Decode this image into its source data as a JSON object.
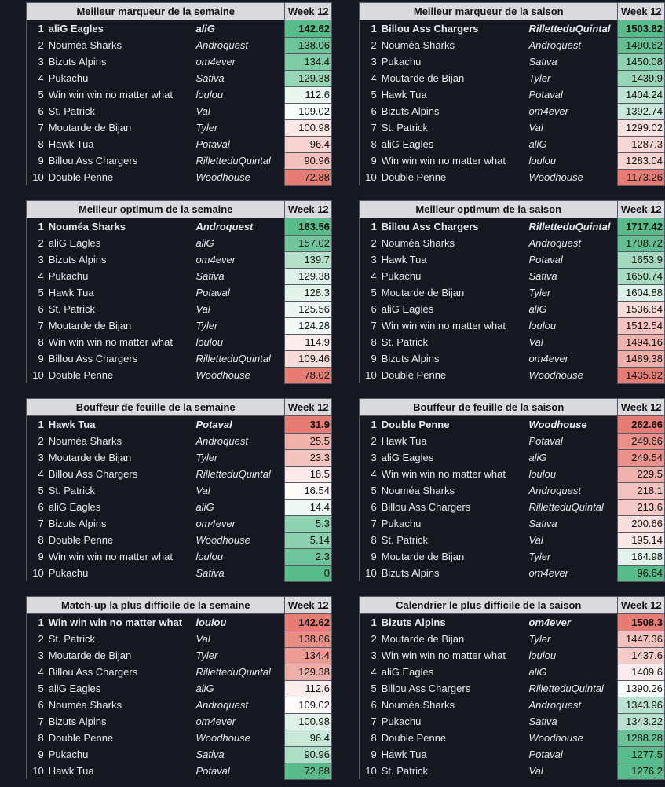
{
  "week_label": "Week 12",
  "colors": {
    "green": "#57bb8a",
    "white": "#ffffff",
    "red": "#e67c73"
  },
  "panels": [
    {
      "title": "Meilleur marqueur de la semaine",
      "good_high": true,
      "rows": [
        {
          "rank": "1",
          "team": "aliG Eagles",
          "owner": "aliG",
          "value": "142.62"
        },
        {
          "rank": "2",
          "team": "Nouméa Sharks",
          "owner": "Androquest",
          "value": "138.06"
        },
        {
          "rank": "3",
          "team": "Bizuts Alpins",
          "owner": "om4ever",
          "value": "134.4"
        },
        {
          "rank": "4",
          "team": "Pukachu",
          "owner": "Sativa",
          "value": "129.38"
        },
        {
          "rank": "5",
          "team": "Win win win no matter what",
          "owner": "loulou",
          "value": "112.6"
        },
        {
          "rank": "6",
          "team": "St. Patrick",
          "owner": "Val",
          "value": "109.02"
        },
        {
          "rank": "7",
          "team": "Moutarde de Bijan",
          "owner": "Tyler",
          "value": "100.98"
        },
        {
          "rank": "8",
          "team": "Hawk Tua",
          "owner": "Potaval",
          "value": "96.4"
        },
        {
          "rank": "9",
          "team": "Billou Ass Chargers",
          "owner": "RilletteduQuintal",
          "value": "90.96"
        },
        {
          "rank": "10",
          "team": "Double Penne",
          "owner": "Woodhouse",
          "value": "72.88"
        }
      ]
    },
    {
      "title": "Meilleur marqueur de la saison",
      "good_high": true,
      "rows": [
        {
          "rank": "1",
          "team": "Billou Ass Chargers",
          "owner": "RilletteduQuintal",
          "value": "1503.82"
        },
        {
          "rank": "2",
          "team": "Nouméa Sharks",
          "owner": "Androquest",
          "value": "1490.62"
        },
        {
          "rank": "3",
          "team": "Pukachu",
          "owner": "Sativa",
          "value": "1450.08"
        },
        {
          "rank": "4",
          "team": "Moutarde de Bijan",
          "owner": "Tyler",
          "value": "1439.9"
        },
        {
          "rank": "5",
          "team": "Hawk Tua",
          "owner": "Potaval",
          "value": "1404.24"
        },
        {
          "rank": "6",
          "team": "Bizuts Alpins",
          "owner": "om4ever",
          "value": "1392.74"
        },
        {
          "rank": "7",
          "team": "St. Patrick",
          "owner": "Val",
          "value": "1299.02"
        },
        {
          "rank": "8",
          "team": "aliG Eagles",
          "owner": "aliG",
          "value": "1287.3"
        },
        {
          "rank": "9",
          "team": "Win win win no matter what",
          "owner": "loulou",
          "value": "1283.04"
        },
        {
          "rank": "10",
          "team": "Double Penne",
          "owner": "Woodhouse",
          "value": "1173.26"
        }
      ]
    },
    {
      "title": "Meilleur optimum de la semaine",
      "good_high": true,
      "rows": [
        {
          "rank": "1",
          "team": "Nouméa Sharks",
          "owner": "Androquest",
          "value": "163.56"
        },
        {
          "rank": "2",
          "team": "aliG Eagles",
          "owner": "aliG",
          "value": "157.02"
        },
        {
          "rank": "3",
          "team": "Bizuts Alpins",
          "owner": "om4ever",
          "value": "139.7"
        },
        {
          "rank": "4",
          "team": "Pukachu",
          "owner": "Sativa",
          "value": "129.38"
        },
        {
          "rank": "5",
          "team": "Hawk Tua",
          "owner": "Potaval",
          "value": "128.3"
        },
        {
          "rank": "6",
          "team": "St. Patrick",
          "owner": "Val",
          "value": "125.56"
        },
        {
          "rank": "7",
          "team": "Moutarde de Bijan",
          "owner": "Tyler",
          "value": "124.28"
        },
        {
          "rank": "8",
          "team": "Win win win no matter what",
          "owner": "loulou",
          "value": "114.9"
        },
        {
          "rank": "9",
          "team": "Billou Ass Chargers",
          "owner": "RilletteduQuintal",
          "value": "109.46"
        },
        {
          "rank": "10",
          "team": "Double Penne",
          "owner": "Woodhouse",
          "value": "78.02"
        }
      ]
    },
    {
      "title": "Meilleur optimum de la saison",
      "good_high": true,
      "rows": [
        {
          "rank": "1",
          "team": "Billou Ass Chargers",
          "owner": "RilletteduQuintal",
          "value": "1717.42"
        },
        {
          "rank": "2",
          "team": "Nouméa Sharks",
          "owner": "Androquest",
          "value": "1708.72"
        },
        {
          "rank": "3",
          "team": "Hawk Tua",
          "owner": "Potaval",
          "value": "1653.9"
        },
        {
          "rank": "4",
          "team": "Pukachu",
          "owner": "Sativa",
          "value": "1650.74"
        },
        {
          "rank": "5",
          "team": "Moutarde de Bijan",
          "owner": "Tyler",
          "value": "1604.88"
        },
        {
          "rank": "6",
          "team": "aliG Eagles",
          "owner": "aliG",
          "value": "1536.84"
        },
        {
          "rank": "7",
          "team": "Win win win no matter what",
          "owner": "loulou",
          "value": "1512.54"
        },
        {
          "rank": "8",
          "team": "St. Patrick",
          "owner": "Val",
          "value": "1494.16"
        },
        {
          "rank": "9",
          "team": "Bizuts Alpins",
          "owner": "om4ever",
          "value": "1489.38"
        },
        {
          "rank": "10",
          "team": "Double Penne",
          "owner": "Woodhouse",
          "value": "1435.92"
        }
      ]
    },
    {
      "title": "Bouffeur de feuille de la semaine",
      "good_high": false,
      "rows": [
        {
          "rank": "1",
          "team": "Hawk Tua",
          "owner": "Potaval",
          "value": "31.9"
        },
        {
          "rank": "2",
          "team": "Nouméa Sharks",
          "owner": "Androquest",
          "value": "25.5"
        },
        {
          "rank": "3",
          "team": "Moutarde de Bijan",
          "owner": "Tyler",
          "value": "23.3"
        },
        {
          "rank": "4",
          "team": "Billou Ass Chargers",
          "owner": "RilletteduQuintal",
          "value": "18.5"
        },
        {
          "rank": "5",
          "team": "St. Patrick",
          "owner": "Val",
          "value": "16.54"
        },
        {
          "rank": "6",
          "team": "aliG Eagles",
          "owner": "aliG",
          "value": "14.4"
        },
        {
          "rank": "7",
          "team": "Bizuts Alpins",
          "owner": "om4ever",
          "value": "5.3"
        },
        {
          "rank": "8",
          "team": "Double Penne",
          "owner": "Woodhouse",
          "value": "5.14"
        },
        {
          "rank": "9",
          "team": "Win win win no matter what",
          "owner": "loulou",
          "value": "2.3"
        },
        {
          "rank": "10",
          "team": "Pukachu",
          "owner": "Sativa",
          "value": "0"
        }
      ]
    },
    {
      "title": "Bouffeur de feuille de la saison",
      "good_high": false,
      "rows": [
        {
          "rank": "1",
          "team": "Double Penne",
          "owner": "Woodhouse",
          "value": "262.66"
        },
        {
          "rank": "2",
          "team": "Hawk Tua",
          "owner": "Potaval",
          "value": "249.66"
        },
        {
          "rank": "3",
          "team": "aliG Eagles",
          "owner": "aliG",
          "value": "249.54"
        },
        {
          "rank": "4",
          "team": "Win win win no matter what",
          "owner": "loulou",
          "value": "229.5"
        },
        {
          "rank": "5",
          "team": "Nouméa Sharks",
          "owner": "Androquest",
          "value": "218.1"
        },
        {
          "rank": "6",
          "team": "Billou Ass Chargers",
          "owner": "RilletteduQuintal",
          "value": "213.6"
        },
        {
          "rank": "7",
          "team": "Pukachu",
          "owner": "Sativa",
          "value": "200.66"
        },
        {
          "rank": "8",
          "team": "St. Patrick",
          "owner": "Val",
          "value": "195.14"
        },
        {
          "rank": "9",
          "team": "Moutarde de Bijan",
          "owner": "Tyler",
          "value": "164.98"
        },
        {
          "rank": "10",
          "team": "Bizuts Alpins",
          "owner": "om4ever",
          "value": "96.64"
        }
      ]
    },
    {
      "title": "Match-up la plus difficile de la semaine",
      "good_high": false,
      "rows": [
        {
          "rank": "1",
          "team": "Win win win no matter what",
          "owner": "loulou",
          "value": "142.62"
        },
        {
          "rank": "2",
          "team": "St. Patrick",
          "owner": "Val",
          "value": "138.06"
        },
        {
          "rank": "3",
          "team": "Moutarde de Bijan",
          "owner": "Tyler",
          "value": "134.4"
        },
        {
          "rank": "4",
          "team": "Billou Ass Chargers",
          "owner": "RilletteduQuintal",
          "value": "129.38"
        },
        {
          "rank": "5",
          "team": "aliG Eagles",
          "owner": "aliG",
          "value": "112.6"
        },
        {
          "rank": "6",
          "team": "Nouméa Sharks",
          "owner": "Androquest",
          "value": "109.02"
        },
        {
          "rank": "7",
          "team": "Bizuts Alpins",
          "owner": "om4ever",
          "value": "100.98"
        },
        {
          "rank": "8",
          "team": "Double Penne",
          "owner": "Woodhouse",
          "value": "96.4"
        },
        {
          "rank": "9",
          "team": "Pukachu",
          "owner": "Sativa",
          "value": "90.96"
        },
        {
          "rank": "10",
          "team": "Hawk Tua",
          "owner": "Potaval",
          "value": "72.88"
        }
      ]
    },
    {
      "title": "Calendrier le plus difficile de la saison",
      "good_high": false,
      "rows": [
        {
          "rank": "1",
          "team": "Bizuts Alpins",
          "owner": "om4ever",
          "value": "1508.3"
        },
        {
          "rank": "2",
          "team": "Moutarde de Bijan",
          "owner": "Tyler",
          "value": "1447.36"
        },
        {
          "rank": "3",
          "team": "Win win win no matter what",
          "owner": "loulou",
          "value": "1437.6"
        },
        {
          "rank": "4",
          "team": "aliG Eagles",
          "owner": "aliG",
          "value": "1409.6"
        },
        {
          "rank": "5",
          "team": "Billou Ass Chargers",
          "owner": "RilletteduQuintal",
          "value": "1390.26"
        },
        {
          "rank": "6",
          "team": "Nouméa Sharks",
          "owner": "Androquest",
          "value": "1343.96"
        },
        {
          "rank": "7",
          "team": "Pukachu",
          "owner": "Sativa",
          "value": "1343.22"
        },
        {
          "rank": "8",
          "team": "Double Penne",
          "owner": "Woodhouse",
          "value": "1288.28"
        },
        {
          "rank": "9",
          "team": "Hawk Tua",
          "owner": "Potaval",
          "value": "1277.5"
        },
        {
          "rank": "10",
          "team": "St. Patrick",
          "owner": "Val",
          "value": "1276.2"
        }
      ]
    }
  ]
}
